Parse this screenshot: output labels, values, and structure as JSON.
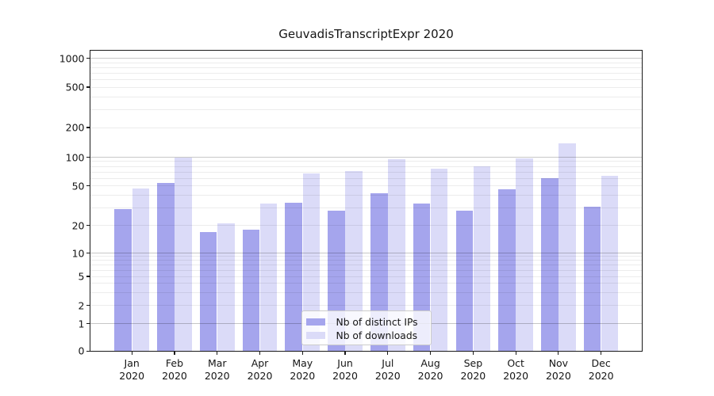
{
  "figure": {
    "title": "GeuvadisTranscriptExpr 2020",
    "background": "#ffffff"
  },
  "axes": {
    "y_tick_labels": [
      "0",
      "1",
      "2",
      "5",
      "10",
      "20",
      "50",
      "100",
      "200",
      "500",
      "1000"
    ],
    "x_ticks": [
      {
        "month": "Jan",
        "year": "2020"
      },
      {
        "month": "Feb",
        "year": "2020"
      },
      {
        "month": "Mar",
        "year": "2020"
      },
      {
        "month": "Apr",
        "year": "2020"
      },
      {
        "month": "May",
        "year": "2020"
      },
      {
        "month": "Jun",
        "year": "2020"
      },
      {
        "month": "Jul",
        "year": "2020"
      },
      {
        "month": "Aug",
        "year": "2020"
      },
      {
        "month": "Sep",
        "year": "2020"
      },
      {
        "month": "Oct",
        "year": "2020"
      },
      {
        "month": "Nov",
        "year": "2020"
      },
      {
        "month": "Dec",
        "year": "2020"
      }
    ]
  },
  "legend": {
    "entries": [
      {
        "label": "Nb of distinct IPs",
        "color": "#a5a5ed"
      },
      {
        "label": "Nb of downloads",
        "color": "#dbdbf8"
      }
    ]
  },
  "chart_data": {
    "type": "bar",
    "title": "GeuvadisTranscriptExpr 2020",
    "categories": [
      "Jan 2020",
      "Feb 2020",
      "Mar 2020",
      "Apr 2020",
      "May 2020",
      "Jun 2020",
      "Jul 2020",
      "Aug 2020",
      "Sep 2020",
      "Oct 2020",
      "Nov 2020",
      "Dec 2020"
    ],
    "series": [
      {
        "name": "Nb of distinct IPs",
        "color": "#a5a5ed",
        "values": [
          29,
          54,
          17,
          18,
          34,
          28,
          42,
          33,
          28,
          46,
          60,
          31
        ]
      },
      {
        "name": "Nb of downloads",
        "color": "#dbdbf8",
        "values": [
          47,
          100,
          21,
          33,
          68,
          72,
          95,
          75,
          80,
          98,
          138,
          63
        ]
      }
    ],
    "xlabel": "",
    "ylabel": "",
    "yscale": "symlog",
    "yticks": [
      0,
      1,
      2,
      5,
      10,
      20,
      50,
      100,
      200,
      500,
      1000
    ],
    "ylim": [
      0,
      1200
    ],
    "grid": true,
    "legend_position": "lower center"
  }
}
